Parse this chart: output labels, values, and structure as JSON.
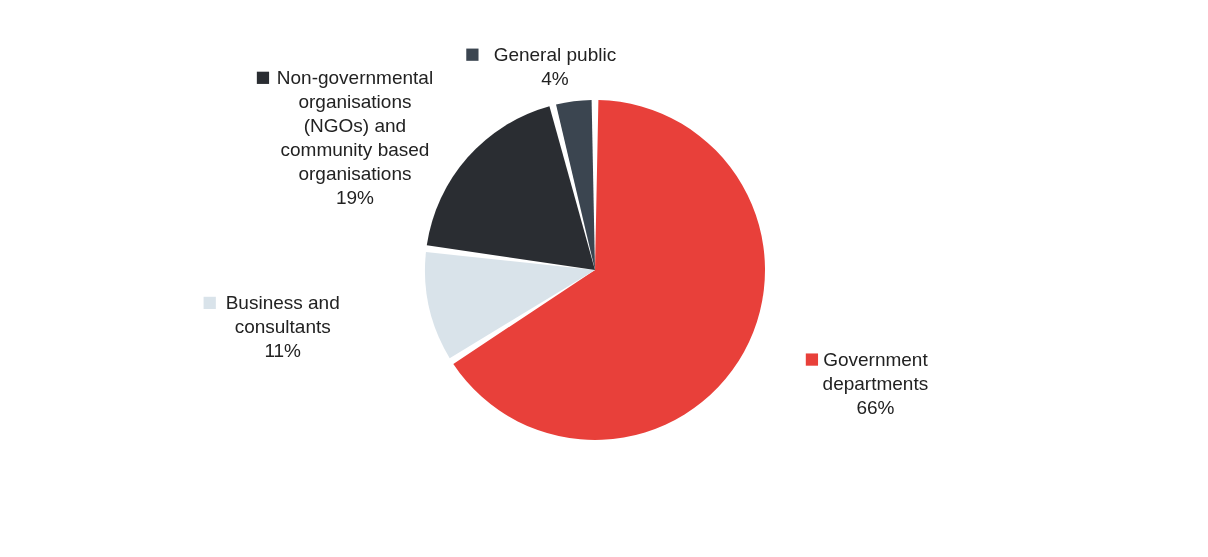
{
  "chart_data": {
    "type": "pie",
    "categories": [
      "Government departments",
      "Business and consultants",
      "Non-governmental organisations (NGOs) and community based organisations",
      "General public"
    ],
    "values": [
      66,
      11,
      19,
      4
    ],
    "value_labels": [
      "66%",
      "11%",
      "19%",
      "4%"
    ],
    "colors": [
      "#e8403a",
      "#d9e3ea",
      "#2a2d32",
      "#3b4550"
    ],
    "legend": true
  }
}
